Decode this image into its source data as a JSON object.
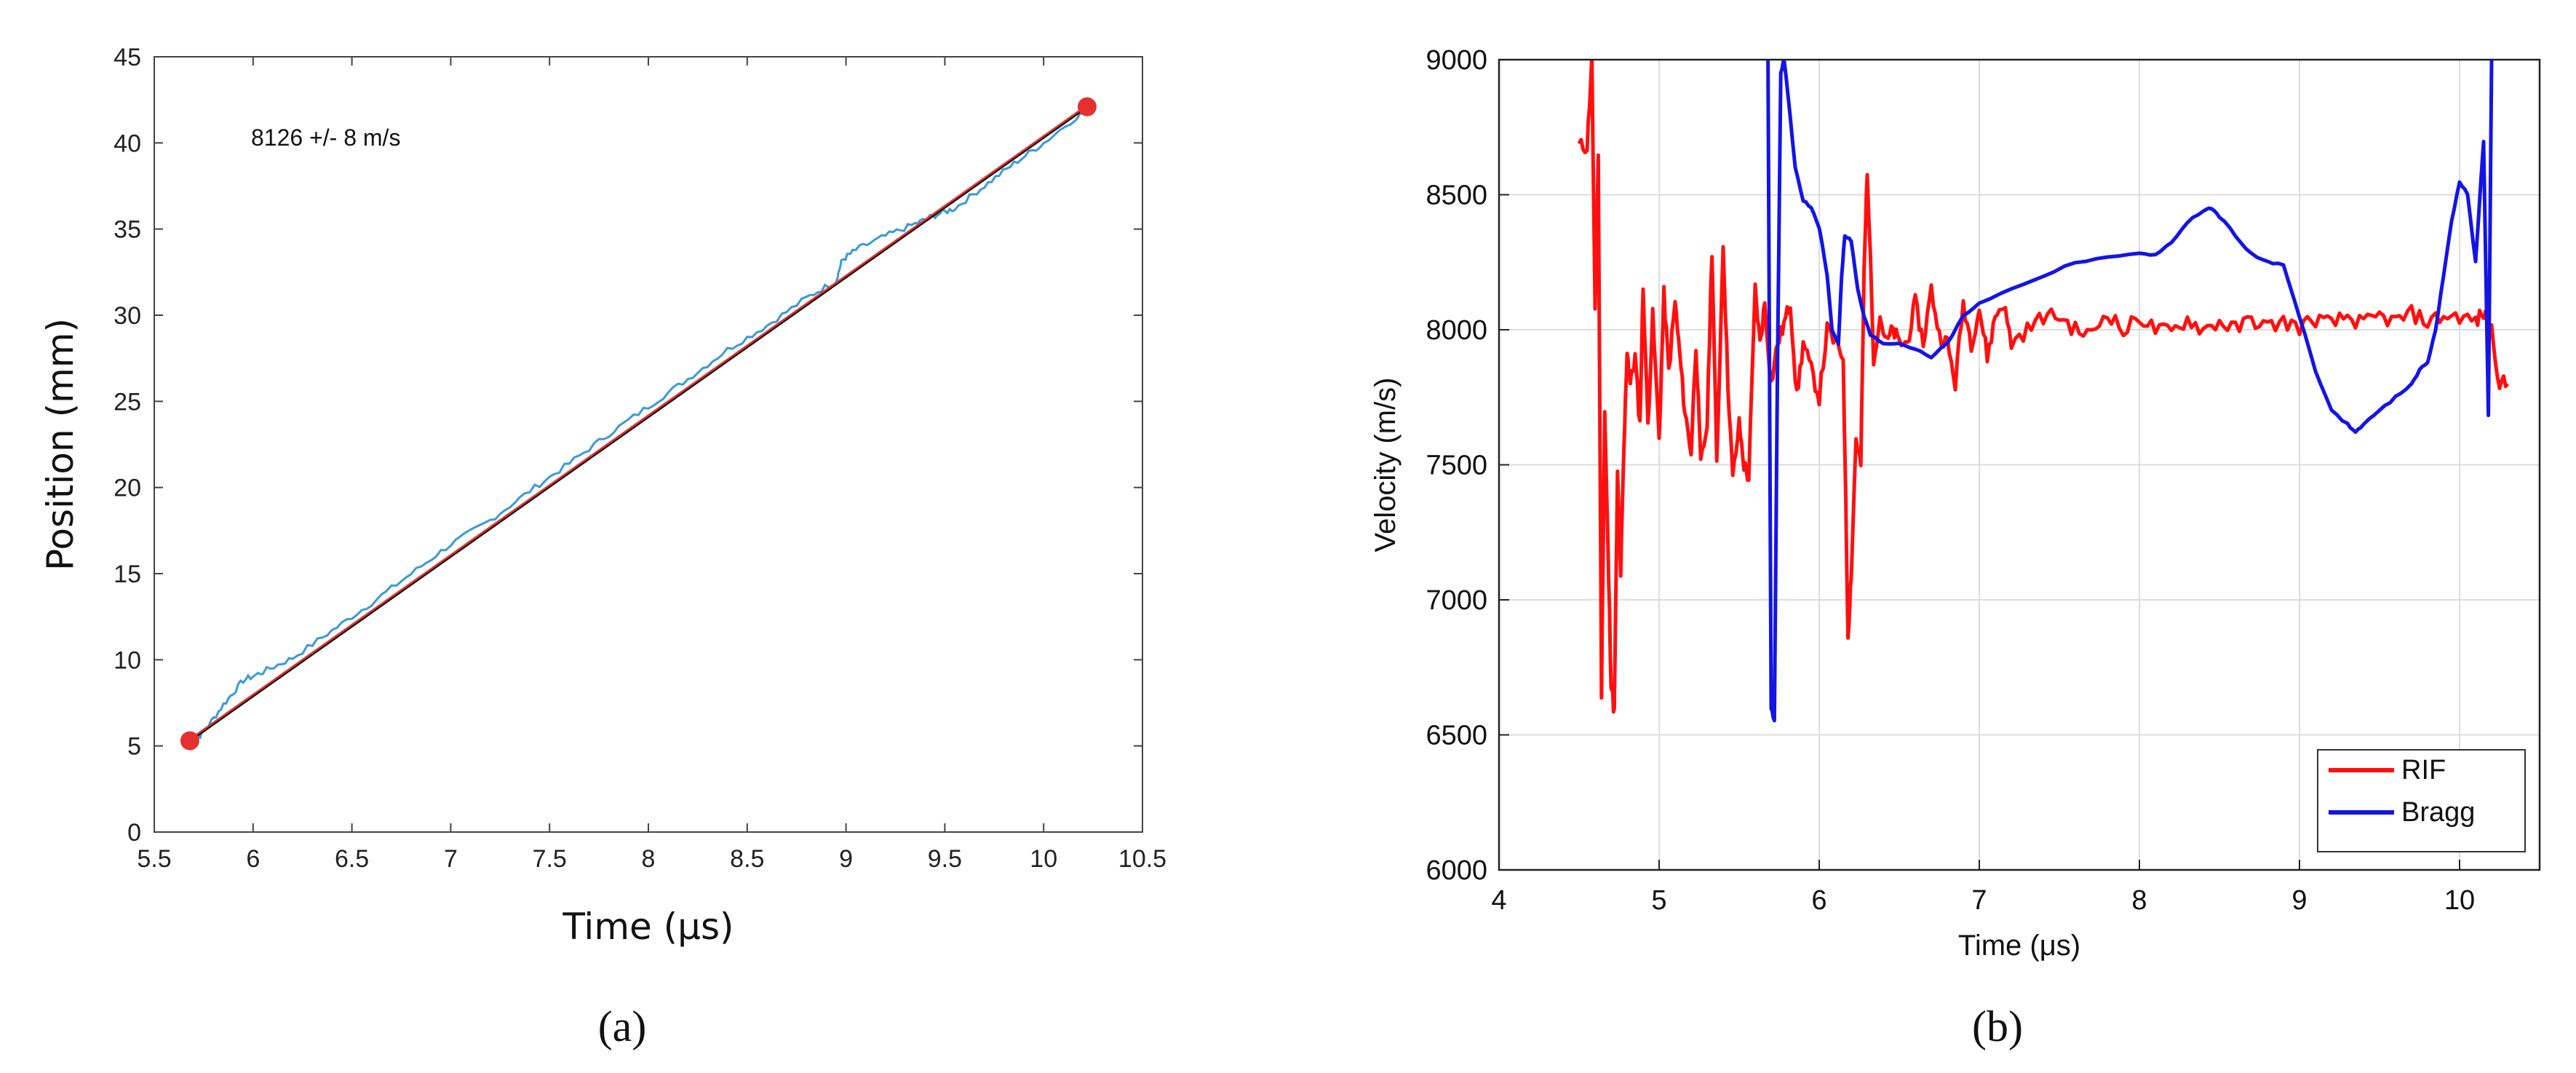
{
  "colors": {
    "fit_red": "#e53030",
    "trace_blue": "#3a9ad9",
    "fit_black": "#111111",
    "rif_red": "#ff1010",
    "bragg_blue": "#1414e6"
  },
  "panels": {
    "a_caption": "(a)",
    "b_caption": "(b)"
  },
  "chart_data": [
    {
      "type": "line",
      "xlabel": "Time (μs)",
      "ylabel": "Position (mm)",
      "xlim": [
        5.5,
        10.5
      ],
      "ylim": [
        0,
        45
      ],
      "xticks": [
        "5.5",
        "6",
        "6.5",
        "7",
        "7.5",
        "8",
        "8.5",
        "9",
        "9.5",
        "10",
        "10.5"
      ],
      "yticks": [
        "0",
        "5",
        "10",
        "15",
        "20",
        "25",
        "30",
        "35",
        "40",
        "45"
      ],
      "grid": false,
      "annotation": "8126 +/- 8 m/s",
      "endpoints": [
        [
          5.68,
          5.3
        ],
        [
          10.22,
          42.1
        ]
      ],
      "series": [
        {
          "x": [
            5.68,
            5.75,
            5.85,
            5.95,
            6.05,
            6.2,
            6.4,
            6.6,
            6.8,
            7.0,
            7.2,
            7.4,
            7.6,
            7.8,
            8.0,
            8.2,
            8.4,
            8.6,
            8.8,
            8.95,
            8.98,
            9.05,
            9.2,
            9.35,
            9.45,
            9.55,
            9.7,
            9.85,
            10.0,
            10.22
          ],
          "y": [
            5.1,
            5.8,
            7.4,
            8.8,
            9.3,
            10.1,
            11.7,
            13.3,
            15.0,
            16.7,
            18.1,
            19.8,
            21.4,
            23.1,
            24.7,
            26.3,
            28.0,
            29.4,
            31.0,
            32.0,
            33.2,
            33.8,
            34.6,
            35.3,
            35.8,
            36.2,
            37.5,
            38.8,
            40.0,
            42.0
          ]
        }
      ]
    },
    {
      "type": "line",
      "xlabel": "Time (μs)",
      "ylabel": "Velocity (m/s)",
      "xlim": [
        4,
        10.5
      ],
      "ylim": [
        6000,
        9000
      ],
      "xticks": [
        "4",
        "5",
        "6",
        "7",
        "8",
        "9",
        "10"
      ],
      "yticks": [
        "6000",
        "6500",
        "7000",
        "7500",
        "8000",
        "8500",
        "9000"
      ],
      "grid": true,
      "legend_position": "bottom-right",
      "series": [
        {
          "name": "RIF",
          "x": [
            4.5,
            4.55,
            4.58,
            4.6,
            4.62,
            4.64,
            4.66,
            4.68,
            4.7,
            4.72,
            4.74,
            4.76,
            4.78,
            4.8,
            4.82,
            4.85,
            4.88,
            4.9,
            4.93,
            4.96,
            5.0,
            5.03,
            5.06,
            5.1,
            5.13,
            5.16,
            5.2,
            5.23,
            5.26,
            5.3,
            5.33,
            5.36,
            5.4,
            5.43,
            5.46,
            5.5,
            5.53,
            5.56,
            5.6,
            5.63,
            5.66,
            5.7,
            5.74,
            5.78,
            5.82,
            5.86,
            5.9,
            5.95,
            6.0,
            6.05,
            6.1,
            6.15,
            6.18,
            6.2,
            6.23,
            6.26,
            6.28,
            6.3,
            6.34,
            6.38,
            6.42,
            6.46,
            6.5,
            6.55,
            6.6,
            6.65,
            6.7,
            6.75,
            6.8,
            6.85,
            6.9,
            6.95,
            7.0,
            7.05,
            7.1,
            7.15,
            7.2,
            7.3,
            7.4,
            7.5,
            7.6,
            7.7,
            7.8,
            7.9,
            8.0,
            8.1,
            8.2,
            8.3,
            8.4,
            8.5,
            8.6,
            8.7,
            8.8,
            8.9,
            9.0,
            9.1,
            9.2,
            9.3,
            9.4,
            9.5,
            9.6,
            9.7,
            9.8,
            9.9,
            10.0,
            10.1,
            10.15,
            10.2,
            10.25,
            10.3
          ],
          "y": [
            8680,
            8680,
            9000,
            8050,
            8650,
            6660,
            7700,
            7200,
            6700,
            6580,
            7460,
            7100,
            7550,
            7930,
            7800,
            7900,
            7650,
            8160,
            7650,
            8050,
            7600,
            8130,
            7850,
            8100,
            7900,
            7700,
            7550,
            7950,
            7500,
            7650,
            8300,
            7500,
            8320,
            7800,
            7450,
            7650,
            7500,
            7450,
            8150,
            7950,
            8100,
            7800,
            7950,
            8020,
            8100,
            7750,
            7950,
            7850,
            7750,
            8000,
            7950,
            7900,
            6870,
            7100,
            7600,
            7500,
            8200,
            8600,
            7900,
            8050,
            7950,
            8000,
            7950,
            7950,
            8100,
            7950,
            8150,
            7980,
            7950,
            7800,
            8100,
            7950,
            8080,
            7900,
            8050,
            8100,
            7950,
            8000,
            8050,
            8050,
            8000,
            7980,
            8070,
            7990,
            8050,
            8000,
            7990,
            8040,
            8000,
            8030,
            8000,
            8040,
            8010,
            8030,
            8010,
            8040,
            8020,
            8050,
            8020,
            8050,
            8030,
            8060,
            8030,
            8050,
            8050,
            8030,
            8060,
            8000,
            7800,
            7800
          ]
        },
        {
          "name": "Bragg",
          "x": [
            5.68,
            5.7,
            5.72,
            5.74,
            5.76,
            5.78,
            5.8,
            5.85,
            5.9,
            5.95,
            6.0,
            6.05,
            6.08,
            6.12,
            6.14,
            6.16,
            6.2,
            6.24,
            6.28,
            6.32,
            6.4,
            6.5,
            6.6,
            6.7,
            6.8,
            6.9,
            7.0,
            7.2,
            7.4,
            7.6,
            7.8,
            8.0,
            8.1,
            8.2,
            8.3,
            8.4,
            8.45,
            8.5,
            8.6,
            8.7,
            8.8,
            8.9,
            9.0,
            9.1,
            9.2,
            9.3,
            9.35,
            9.4,
            9.5,
            9.6,
            9.7,
            9.75,
            9.8,
            9.85,
            9.9,
            9.95,
            10.0,
            10.05,
            10.1,
            10.15,
            10.18,
            10.2
          ],
          "y": [
            9000,
            6600,
            6550,
            7900,
            8950,
            9000,
            8900,
            8600,
            8480,
            8450,
            8380,
            8200,
            8000,
            7950,
            8200,
            8350,
            8330,
            8150,
            8050,
            7980,
            7950,
            7950,
            7930,
            7900,
            7950,
            8050,
            8100,
            8150,
            8200,
            8250,
            8270,
            8280,
            8280,
            8320,
            8400,
            8440,
            8450,
            8420,
            8350,
            8280,
            8250,
            8240,
            8050,
            7850,
            7700,
            7650,
            7620,
            7650,
            7700,
            7750,
            7800,
            7850,
            7880,
            8000,
            8200,
            8400,
            8550,
            8500,
            8250,
            8700,
            7680,
            9000
          ]
        }
      ]
    }
  ]
}
